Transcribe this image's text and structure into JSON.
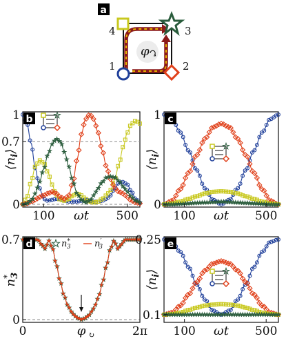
{
  "colors": {
    "blue": "#1f3f9a",
    "red": "#e0401a",
    "yellow": "#c8c81e",
    "green": "#2a5c3c",
    "dark_red": "#8b1a1a",
    "label_bg": "#000000"
  },
  "diagram": {
    "panel_label": "a",
    "site_labels": [
      "1",
      "2",
      "3",
      "4"
    ],
    "flux_label": "φ",
    "flux_icon": "circular-arrow-icon"
  },
  "chart_data": [
    {
      "panel_label": "b",
      "type": "line",
      "xlabel": "ωt",
      "ylabel": "⟨n_i⟩",
      "ylabel_main": "⟨n",
      "ylabel_sub": "i",
      "ylabel_close": "⟩",
      "xlim": [
        0,
        560
      ],
      "ylim": [
        0,
        1
      ],
      "xticks": [
        {
          "v": 100,
          "label": "100"
        },
        {
          "v": 500,
          "label": "500"
        }
      ],
      "yticks": [
        {
          "v": 0,
          "label": "0"
        },
        {
          "v": 0.7,
          "label": "0.7"
        },
        {
          "v": 1,
          "label": "1"
        }
      ],
      "hlines": [
        0,
        0.7
      ],
      "markers": "dense",
      "series": [
        {
          "color": "blue",
          "marker": "circle",
          "x": [
            0,
            20,
            40,
            60,
            80,
            100,
            120,
            140,
            160,
            180,
            200,
            220,
            240,
            260,
            280,
            300,
            320,
            340,
            360,
            380,
            400,
            420,
            440,
            460,
            480,
            500,
            520,
            540,
            560
          ],
          "y": [
            1.0,
            0.9,
            0.68,
            0.4,
            0.18,
            0.06,
            0.04,
            0.05,
            0.06,
            0.06,
            0.04,
            0.03,
            0.03,
            0.03,
            0.04,
            0.05,
            0.04,
            0.03,
            0.03,
            0.04,
            0.06,
            0.1,
            0.18,
            0.24,
            0.25,
            0.22,
            0.14,
            0.06,
            0.02
          ]
        },
        {
          "color": "yellow",
          "marker": "square",
          "x": [
            0,
            20,
            40,
            60,
            80,
            100,
            120,
            140,
            160,
            180,
            200,
            220,
            240,
            260,
            280,
            300,
            320,
            340,
            360,
            380,
            400,
            420,
            440,
            460,
            480,
            500,
            520,
            540,
            560
          ],
          "y": [
            0.0,
            0.08,
            0.25,
            0.42,
            0.49,
            0.46,
            0.36,
            0.22,
            0.1,
            0.05,
            0.04,
            0.06,
            0.1,
            0.12,
            0.1,
            0.06,
            0.03,
            0.02,
            0.03,
            0.06,
            0.1,
            0.16,
            0.28,
            0.45,
            0.64,
            0.8,
            0.9,
            0.93,
            0.9
          ]
        },
        {
          "color": "red",
          "marker": "diamond",
          "x": [
            0,
            20,
            40,
            60,
            80,
            100,
            120,
            140,
            160,
            180,
            200,
            220,
            240,
            260,
            280,
            300,
            320,
            340,
            360,
            380,
            400,
            420,
            440,
            460,
            480,
            500,
            520,
            540,
            560
          ],
          "y": [
            0.0,
            0.01,
            0.03,
            0.05,
            0.08,
            0.1,
            0.12,
            0.14,
            0.12,
            0.08,
            0.06,
            0.1,
            0.25,
            0.5,
            0.78,
            0.95,
            1.0,
            0.95,
            0.8,
            0.6,
            0.42,
            0.28,
            0.18,
            0.14,
            0.12,
            0.08,
            0.04,
            0.02,
            0.01
          ]
        },
        {
          "color": "green",
          "marker": "star",
          "x": [
            0,
            20,
            40,
            60,
            80,
            100,
            120,
            140,
            160,
            180,
            200,
            220,
            240,
            260,
            280,
            300,
            320,
            340,
            360,
            380,
            400,
            420,
            440,
            460,
            480,
            500,
            520,
            540,
            560
          ],
          "y": [
            0.0,
            0.01,
            0.04,
            0.12,
            0.25,
            0.39,
            0.55,
            0.67,
            0.73,
            0.7,
            0.58,
            0.42,
            0.25,
            0.12,
            0.05,
            0.02,
            0.04,
            0.1,
            0.18,
            0.25,
            0.3,
            0.31,
            0.3,
            0.26,
            0.2,
            0.14,
            0.08,
            0.04,
            0.02
          ]
        }
      ]
    },
    {
      "panel_label": "c",
      "type": "line",
      "xlabel": "ωt",
      "ylabel": "⟨n_i⟩",
      "ylabel_main": "⟨n",
      "ylabel_sub": "i",
      "ylabel_close": "⟩",
      "xlim": [
        0,
        560
      ],
      "ylim": [
        0,
        1
      ],
      "xticks": [
        {
          "v": 100,
          "label": "100"
        },
        {
          "v": 500,
          "label": "500"
        }
      ],
      "yticks": [
        {
          "v": 0,
          "label": "0"
        },
        {
          "v": 1,
          "label": "1"
        }
      ],
      "hlines": [],
      "markers": "dense",
      "series": [
        {
          "color": "blue",
          "marker": "circle",
          "x": [
            0,
            40,
            80,
            120,
            160,
            200,
            240,
            280,
            320,
            360,
            400,
            440,
            480,
            520,
            560
          ],
          "y": [
            1.0,
            0.95,
            0.8,
            0.6,
            0.38,
            0.18,
            0.05,
            0.0,
            0.05,
            0.18,
            0.38,
            0.6,
            0.8,
            0.95,
            1.0
          ]
        },
        {
          "color": "red",
          "marker": "diamond",
          "x": [
            0,
            40,
            80,
            120,
            160,
            200,
            240,
            280,
            320,
            360,
            400,
            440,
            480,
            520,
            560
          ],
          "y": [
            0.0,
            0.04,
            0.17,
            0.35,
            0.55,
            0.73,
            0.86,
            0.9,
            0.86,
            0.73,
            0.55,
            0.35,
            0.17,
            0.04,
            0.0
          ]
        },
        {
          "color": "yellow",
          "marker": "square",
          "x": [
            0,
            40,
            80,
            120,
            160,
            200,
            240,
            280,
            320,
            360,
            400,
            440,
            480,
            520,
            560
          ],
          "y": [
            0.0,
            0.01,
            0.03,
            0.06,
            0.09,
            0.12,
            0.14,
            0.145,
            0.14,
            0.12,
            0.09,
            0.06,
            0.03,
            0.01,
            0.0
          ]
        },
        {
          "color": "green",
          "marker": "star",
          "x": [
            0,
            40,
            80,
            120,
            160,
            200,
            240,
            280,
            320,
            360,
            400,
            440,
            480,
            520,
            560
          ],
          "y": [
            0.0,
            0.0,
            0.005,
            0.01,
            0.015,
            0.02,
            0.025,
            0.03,
            0.025,
            0.02,
            0.015,
            0.01,
            0.005,
            0.0,
            0.0
          ]
        }
      ]
    },
    {
      "panel_label": "d",
      "type": "line",
      "xlabel": "φ",
      "ylabel": "n*_3",
      "ylabel_main": "n",
      "ylabel_sub": "3",
      "ylabel_sup": "*",
      "xlim": [
        0,
        6.2832
      ],
      "ylim": [
        0,
        0.7
      ],
      "xticks": [
        {
          "v": 0,
          "label": "0"
        },
        {
          "v": 6.2832,
          "label": "2π"
        }
      ],
      "yticks": [
        {
          "v": 0,
          "label": "0"
        },
        {
          "v": 0.7,
          "label": "0.7"
        }
      ],
      "hlines": [
        0
      ],
      "legend": [
        "n*_3",
        "n'_3"
      ],
      "legend_items": [
        {
          "main": "n",
          "sup": "*",
          "sub": "3"
        },
        {
          "main": "n",
          "sup": "′",
          "sub": "3"
        }
      ],
      "arrow_at": 3.1416,
      "series": [
        {
          "name": "n*_3",
          "color": "green",
          "marker": "star",
          "x": [
            0,
            0.4,
            0.8,
            1.0,
            1.2,
            1.4,
            1.6,
            1.8,
            2.0,
            2.2,
            2.4,
            2.6,
            2.8,
            3.0,
            3.1416,
            3.3,
            3.5,
            3.7,
            3.9,
            4.1,
            4.3,
            4.5,
            4.7,
            4.9,
            5.1,
            5.3,
            5.5,
            5.9,
            6.2832
          ],
          "y": [
            0.7,
            0.7,
            0.7,
            0.66,
            0.62,
            0.69,
            0.62,
            0.48,
            0.34,
            0.22,
            0.13,
            0.07,
            0.03,
            0.01,
            0.0,
            0.01,
            0.03,
            0.07,
            0.13,
            0.22,
            0.34,
            0.48,
            0.62,
            0.69,
            0.62,
            0.66,
            0.7,
            0.7,
            0.7
          ]
        },
        {
          "name": "n'_3",
          "color": "red",
          "marker": "plus",
          "x": [
            0,
            0.4,
            0.8,
            1.0,
            1.2,
            1.4,
            1.6,
            1.8,
            2.0,
            2.2,
            2.4,
            2.6,
            2.8,
            3.0,
            3.1416,
            3.3,
            3.5,
            3.7,
            3.9,
            4.1,
            4.3,
            4.5,
            4.7,
            4.9,
            5.1,
            5.3,
            5.5,
            5.9,
            6.2832
          ],
          "y": [
            0.7,
            0.7,
            0.7,
            0.66,
            0.62,
            0.69,
            0.62,
            0.48,
            0.34,
            0.22,
            0.13,
            0.07,
            0.03,
            0.01,
            0.0,
            0.01,
            0.03,
            0.07,
            0.13,
            0.22,
            0.34,
            0.48,
            0.62,
            0.69,
            0.62,
            0.66,
            0.7,
            0.7,
            0.7
          ]
        }
      ]
    },
    {
      "panel_label": "e",
      "type": "line",
      "xlabel": "ωt",
      "ylabel": "⟨n_i⟩",
      "ylabel_main": "⟨n",
      "ylabel_sub": "i",
      "ylabel_close": "⟩",
      "xlim": [
        0,
        560
      ],
      "ylim": [
        0.09,
        0.25
      ],
      "xticks": [
        {
          "v": 100,
          "label": "100"
        },
        {
          "v": 500,
          "label": "500"
        }
      ],
      "yticks": [
        {
          "v": 0.1,
          "label": "0.1"
        },
        {
          "v": 0.25,
          "label": "0.25"
        }
      ],
      "hlines": [],
      "series": [
        {
          "color": "blue",
          "marker": "circle",
          "x": [
            0,
            40,
            80,
            120,
            160,
            200,
            240,
            280,
            320,
            360,
            400,
            440,
            480,
            520,
            560
          ],
          "y": [
            0.25,
            0.245,
            0.225,
            0.195,
            0.16,
            0.13,
            0.108,
            0.1,
            0.108,
            0.13,
            0.16,
            0.195,
            0.225,
            0.245,
            0.25
          ]
        },
        {
          "color": "red",
          "marker": "diamond",
          "x": [
            0,
            40,
            80,
            120,
            160,
            200,
            240,
            280,
            320,
            360,
            400,
            440,
            480,
            520,
            560
          ],
          "y": [
            0.1,
            0.104,
            0.118,
            0.14,
            0.165,
            0.188,
            0.202,
            0.207,
            0.202,
            0.188,
            0.165,
            0.14,
            0.118,
            0.104,
            0.1
          ]
        },
        {
          "color": "yellow",
          "marker": "square",
          "x": [
            0,
            40,
            80,
            120,
            160,
            200,
            240,
            280,
            320,
            360,
            400,
            440,
            480,
            520,
            560
          ],
          "y": [
            0.1,
            0.101,
            0.104,
            0.109,
            0.114,
            0.118,
            0.12,
            0.121,
            0.12,
            0.118,
            0.114,
            0.109,
            0.104,
            0.101,
            0.1
          ]
        },
        {
          "color": "green",
          "marker": "star",
          "x": [
            0,
            40,
            80,
            120,
            160,
            200,
            240,
            280,
            320,
            360,
            400,
            440,
            480,
            520,
            560
          ],
          "y": [
            0.1,
            0.1,
            0.1,
            0.1,
            0.1,
            0.1,
            0.1,
            0.1,
            0.1,
            0.1,
            0.1,
            0.1,
            0.1,
            0.1,
            0.1
          ]
        }
      ]
    }
  ]
}
